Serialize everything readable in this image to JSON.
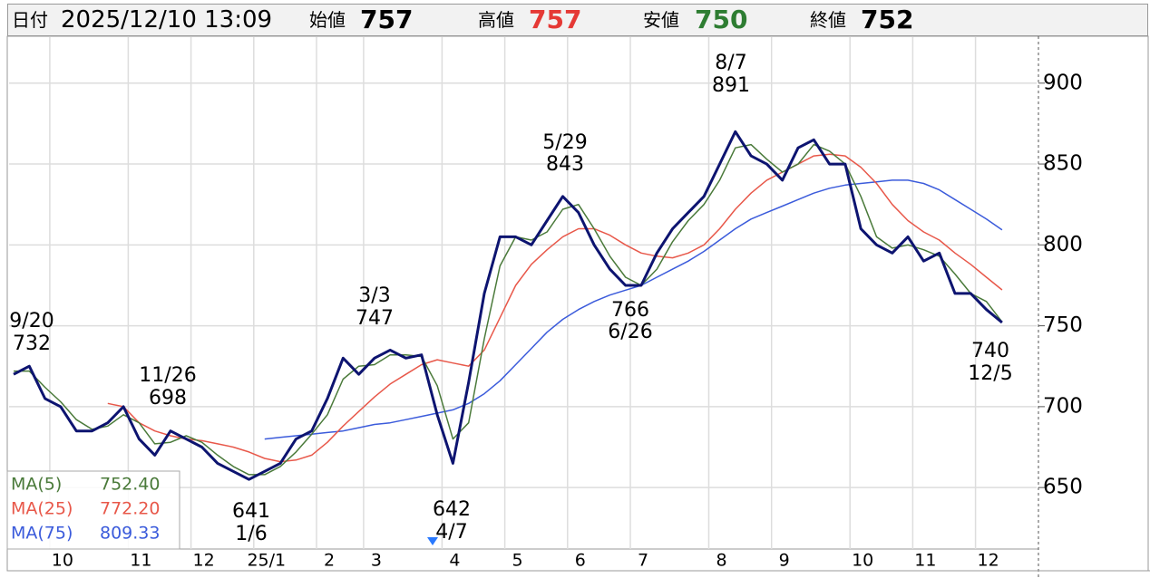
{
  "header": {
    "date_label": "日付",
    "datetime": "2025/12/10 13:09",
    "open_label": "始値",
    "open": 757,
    "high_label": "高値",
    "high": 757,
    "low_label": "安値",
    "low": 750,
    "close_label": "終値",
    "close": 752
  },
  "chart_data": {
    "type": "line",
    "categories": [
      null,
      null,
      null,
      "10",
      null,
      null,
      null,
      null,
      "11",
      null,
      null,
      null,
      "12",
      null,
      null,
      null,
      "25/1",
      null,
      null,
      null,
      "2",
      null,
      null,
      "3",
      null,
      null,
      null,
      null,
      "4",
      null,
      null,
      null,
      "5",
      null,
      null,
      null,
      "6",
      null,
      null,
      null,
      "7",
      null,
      null,
      null,
      null,
      "8",
      null,
      null,
      null,
      "9",
      null,
      null,
      null,
      null,
      "10",
      null,
      null,
      null,
      "11",
      null,
      null,
      null,
      "12",
      null
    ],
    "values": [
      720,
      725,
      705,
      700,
      685,
      685,
      690,
      700,
      680,
      670,
      685,
      680,
      675,
      665,
      660,
      655,
      660,
      665,
      680,
      685,
      705,
      730,
      720,
      730,
      735,
      730,
      732,
      695,
      665,
      715,
      770,
      805,
      805,
      800,
      815,
      830,
      820,
      800,
      785,
      775,
      775,
      795,
      810,
      820,
      830,
      850,
      870,
      855,
      850,
      840,
      860,
      865,
      850,
      850,
      810,
      800,
      795,
      805,
      790,
      795,
      770,
      770,
      760,
      752
    ],
    "color": "#0d1470",
    "series": [
      {
        "name": "MA(5)",
        "color": "#4a7a3a",
        "latest": "752.40",
        "values": [
          722,
          722,
          712,
          703,
          692,
          686,
          688,
          695,
          690,
          677,
          678,
          682,
          678,
          670,
          663,
          658,
          658,
          663,
          672,
          683,
          695,
          717,
          725,
          726,
          732,
          732,
          731,
          713,
          680,
          690,
          742,
          787,
          805,
          803,
          808,
          822,
          825,
          810,
          793,
          780,
          775,
          785,
          802,
          815,
          825,
          840,
          860,
          862,
          853,
          845,
          850,
          862,
          858,
          850,
          830,
          805,
          798,
          800,
          797,
          793,
          782,
          770,
          765,
          752.4
        ]
      },
      {
        "name": "MA(25)",
        "color": "#e8584a",
        "latest": "772.20",
        "values": [
          null,
          null,
          null,
          null,
          null,
          null,
          702,
          700,
          690,
          685,
          682,
          680,
          679,
          677,
          675,
          672,
          668,
          666,
          667,
          670,
          678,
          688,
          697,
          706,
          714,
          720,
          726,
          729,
          727,
          725,
          735,
          755,
          775,
          788,
          797,
          805,
          810,
          810,
          806,
          800,
          795,
          793,
          792,
          795,
          800,
          810,
          822,
          832,
          840,
          845,
          850,
          855,
          856,
          855,
          848,
          838,
          825,
          815,
          808,
          803,
          795,
          788,
          780,
          772.2
        ]
      },
      {
        "name": "MA(75)",
        "color": "#3b5bdb",
        "latest": "809.33",
        "values": [
          null,
          null,
          null,
          null,
          null,
          null,
          null,
          null,
          null,
          null,
          null,
          null,
          null,
          null,
          null,
          null,
          680,
          681,
          682,
          683,
          684,
          685,
          687,
          689,
          690,
          692,
          694,
          696,
          698,
          702,
          708,
          716,
          726,
          736,
          746,
          754,
          760,
          765,
          769,
          772,
          775,
          780,
          785,
          790,
          796,
          803,
          810,
          816,
          820,
          824,
          828,
          832,
          835,
          837,
          838,
          839,
          840,
          840,
          838,
          834,
          828,
          822,
          816,
          809.33
        ]
      }
    ],
    "annotations": [
      {
        "date": "9/20",
        "value": 732
      },
      {
        "date": "11/26",
        "value": 698
      },
      {
        "date": "1/6",
        "value": 641
      },
      {
        "date": "3/3",
        "value": 747
      },
      {
        "date": "4/7",
        "value": 642
      },
      {
        "date": "5/29",
        "value": 843
      },
      {
        "date": "6/26",
        "value": 766
      },
      {
        "date": "8/7",
        "value": 891
      },
      {
        "date": "12/5",
        "value": 740
      }
    ],
    "ylim": [
      612,
      929
    ],
    "yticks": [
      650,
      700,
      750,
      800,
      850,
      900
    ],
    "grid": true
  }
}
